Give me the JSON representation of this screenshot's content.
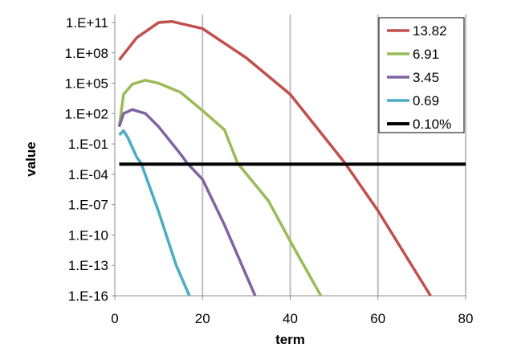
{
  "chart_data": {
    "type": "line",
    "title": "",
    "xlabel": "term",
    "ylabel": "value",
    "xlim": [
      0,
      80
    ],
    "x_ticks": [
      0,
      20,
      40,
      60,
      80
    ],
    "x_tick_labels": [
      "0",
      "20",
      "40",
      "60",
      "80"
    ],
    "ylim_log10": [
      -16,
      11
    ],
    "y_scale": "log",
    "y_ticks_log10": [
      11,
      8,
      5,
      2,
      -1,
      -4,
      -7,
      -10,
      -13,
      -16
    ],
    "y_tick_labels": [
      "1.E+11",
      "1.E+08",
      "1.E+05",
      "1.E+02",
      "1.E-01",
      "1.E-04",
      "1.E-07",
      "1.E-10",
      "1.E-13",
      "1.E-16"
    ],
    "grid": "vertical",
    "legend_position": "top-right",
    "series": [
      {
        "name": "13.82",
        "color": "#c0504d",
        "x": [
          1,
          5,
          10,
          13,
          20,
          30,
          40,
          52.5,
          60,
          72
        ],
        "log10_values": [
          7.3,
          9.5,
          11,
          11.1,
          10.4,
          7.5,
          3.9,
          -2.9,
          -7.6,
          -16
        ]
      },
      {
        "name": "6.91",
        "color": "#9bbb59",
        "x": [
          1,
          2,
          4,
          7,
          10,
          15,
          20,
          25,
          28,
          35,
          40,
          47
        ],
        "log10_values": [
          0.7,
          3.9,
          4.9,
          5.3,
          5.0,
          4.1,
          2.3,
          0.4,
          -2.9,
          -6.6,
          -10.6,
          -16
        ]
      },
      {
        "name": "3.45",
        "color": "#8064a2",
        "x": [
          1,
          2,
          4,
          7,
          10,
          15,
          16.5,
          20,
          25,
          32
        ],
        "log10_values": [
          0.7,
          2.0,
          2.4,
          2.0,
          0.7,
          -2.0,
          -2.9,
          -4.5,
          -9,
          -16
        ]
      },
      {
        "name": "0.69",
        "color": "#4bacc6",
        "x": [
          1,
          2,
          3,
          5,
          6,
          10,
          14,
          17
        ],
        "log10_values": [
          -0.1,
          0.3,
          -0.4,
          -2.3,
          -2.9,
          -7.7,
          -13,
          -16
        ]
      },
      {
        "name": "0.10%",
        "color": "#000000",
        "x": [
          1,
          80
        ],
        "log10_values": [
          -3,
          -3
        ]
      }
    ]
  }
}
